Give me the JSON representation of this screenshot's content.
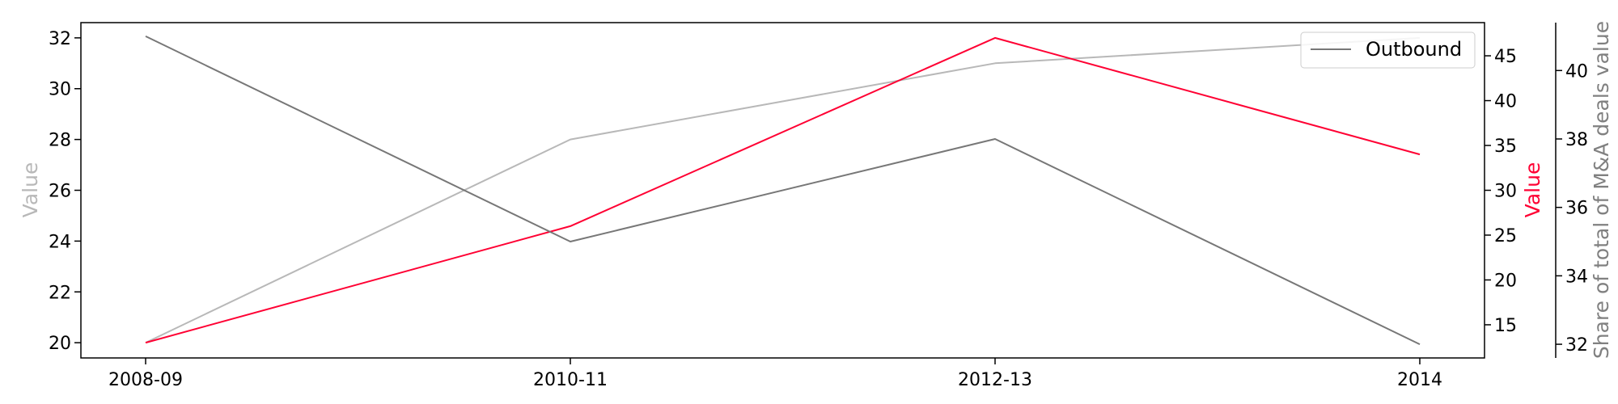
{
  "chart_data": {
    "type": "line",
    "x": [
      "2008-09",
      "2010-11",
      "2012-13",
      "2014"
    ],
    "axes": [
      {
        "id": "left",
        "label": "Value",
        "color": "#b8b8b8",
        "ylim": [
          19.4,
          32.6
        ],
        "ticks": [
          20,
          22,
          24,
          26,
          28,
          30,
          32
        ]
      },
      {
        "id": "right1",
        "label": "Value",
        "color": "#ff0033",
        "ylim": [
          11.3,
          48.7
        ],
        "ticks": [
          15,
          20,
          25,
          30,
          35,
          40,
          45
        ]
      },
      {
        "id": "right2",
        "label": "Share of total of M&A deals value",
        "color": "#808080",
        "ylim": [
          31.6,
          41.4
        ],
        "ticks": [
          32,
          34,
          36,
          38,
          40
        ]
      }
    ],
    "series": [
      {
        "axis": "left",
        "color": "#b8b8b8",
        "values": [
          20,
          28,
          31,
          32
        ]
      },
      {
        "axis": "right1",
        "color": "#ff0033",
        "values": [
          13,
          26,
          47,
          34
        ]
      },
      {
        "name": "Outbound",
        "axis": "right2",
        "color": "#777777",
        "values": [
          41,
          35,
          38,
          32
        ]
      }
    ],
    "legend": {
      "position": "top-right",
      "entries": [
        "Outbound"
      ]
    },
    "grid": false
  }
}
